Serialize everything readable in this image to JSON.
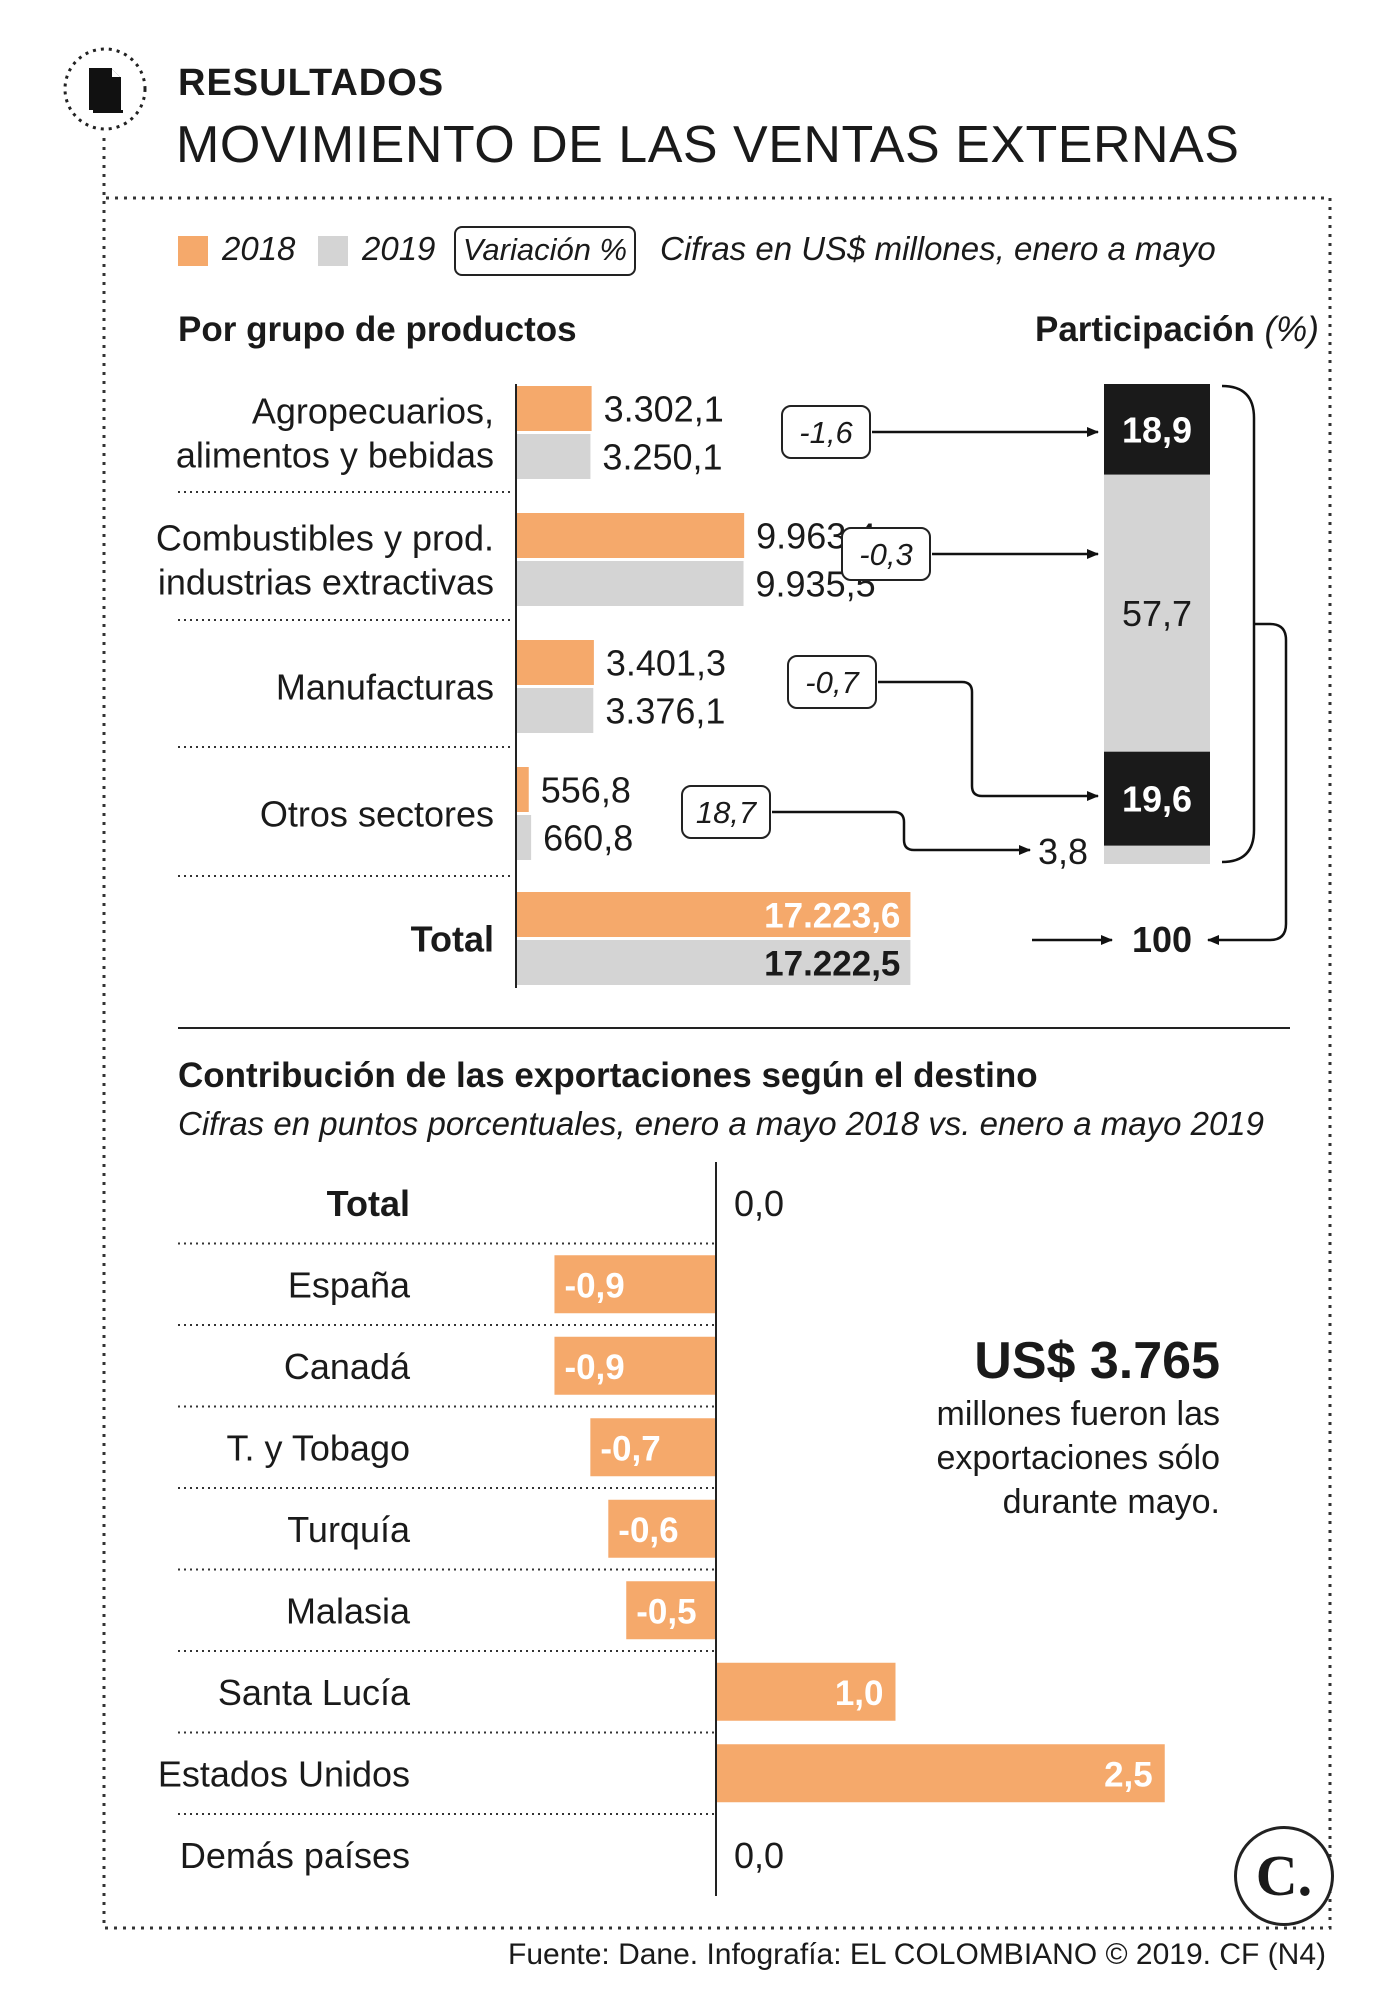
{
  "header": {
    "section_label": "RESULTADOS",
    "title": "MOVIMIENTO DE LAS VENTAS EXTERNAS"
  },
  "legend": {
    "items": [
      {
        "label": "2018",
        "color": "#f5a96b"
      },
      {
        "label": "2019",
        "color": "#d4d4d4"
      }
    ],
    "variation_label": "Variación %",
    "note": "Cifras en US$ millones, enero a mayo"
  },
  "products_panel": {
    "heading": "Por grupo de productos",
    "participation_heading": "Participación",
    "participation_unit": "(%)"
  },
  "destination_panel": {
    "heading": "Contribución de las exportaciones según el destino",
    "subheading": "Cifras en puntos porcentuales, enero a mayo 2018 vs. enero a mayo 2019"
  },
  "callout": {
    "amount": "US$ 3.765",
    "text_lines": [
      "millones fueron las",
      "exportaciones sólo",
      "durante mayo."
    ]
  },
  "footer": {
    "source": "Fuente: Dane. Infografía: EL COLOMBIANO © 2019. CF (N4)",
    "logo_letter": "C."
  },
  "chart_data": [
    {
      "type": "bar",
      "orientation": "horizontal",
      "title": "Por grupo de productos",
      "categories": [
        {
          "lines": [
            "Agropecuarios,",
            "alimentos y bebidas"
          ]
        },
        {
          "lines": [
            "Combustibles y prod.",
            "industrias extractivas"
          ]
        },
        {
          "lines": [
            "Manufacturas"
          ]
        },
        {
          "lines": [
            "Otros sectores"
          ]
        },
        {
          "lines": [
            "Total"
          ]
        }
      ],
      "series": [
        {
          "name": "2018",
          "color": "#f5a96b",
          "values": [
            3302.1,
            9963.4,
            3401.3,
            556.8,
            17223.6
          ],
          "labels": [
            "3.302,1",
            "9.963,4",
            "3.401,3",
            "556,8",
            "17.223,6"
          ]
        },
        {
          "name": "2019",
          "color": "#d4d4d4",
          "values": [
            3250.1,
            9935.5,
            3376.1,
            660.8,
            17222.5
          ],
          "labels": [
            "3.250,1",
            "9.935,5",
            "3.376,1",
            "660,8",
            "17.222,5"
          ]
        }
      ],
      "variation": [
        {
          "value": -1.6,
          "label": "-1,6"
        },
        {
          "value": -0.3,
          "label": "-0,3"
        },
        {
          "value": -0.7,
          "label": "-0,7"
        },
        {
          "value": 18.7,
          "label": "18,7"
        }
      ],
      "participation": [
        {
          "value": 18.9,
          "label": "18,9"
        },
        {
          "value": 57.7,
          "label": "57,7"
        },
        {
          "value": 19.6,
          "label": "19,6"
        },
        {
          "value": 3.8,
          "label": "3,8"
        }
      ],
      "participation_total": {
        "value": 100,
        "label": "100"
      },
      "participation_colors": {
        "dark": "#1a1a1a",
        "light": "#d4d4d4"
      }
    },
    {
      "type": "bar",
      "orientation": "horizontal",
      "title": "Contribución de las exportaciones según el destino",
      "categories": [
        "Total",
        "España",
        "Canadá",
        "T. y Tobago",
        "Turquía",
        "Malasia",
        "Santa Lucía",
        "Estados Unidos",
        "Demás países"
      ],
      "values": [
        0.0,
        -0.9,
        -0.9,
        -0.7,
        -0.6,
        -0.5,
        1.0,
        2.5,
        0.0
      ],
      "labels": [
        "0,0",
        "-0,9",
        "-0,9",
        "-0,7",
        "-0,6",
        "-0,5",
        "1,0",
        "2,5",
        "0,0"
      ],
      "bold_categories": [
        "Total"
      ],
      "color": "#f5a96b"
    }
  ]
}
